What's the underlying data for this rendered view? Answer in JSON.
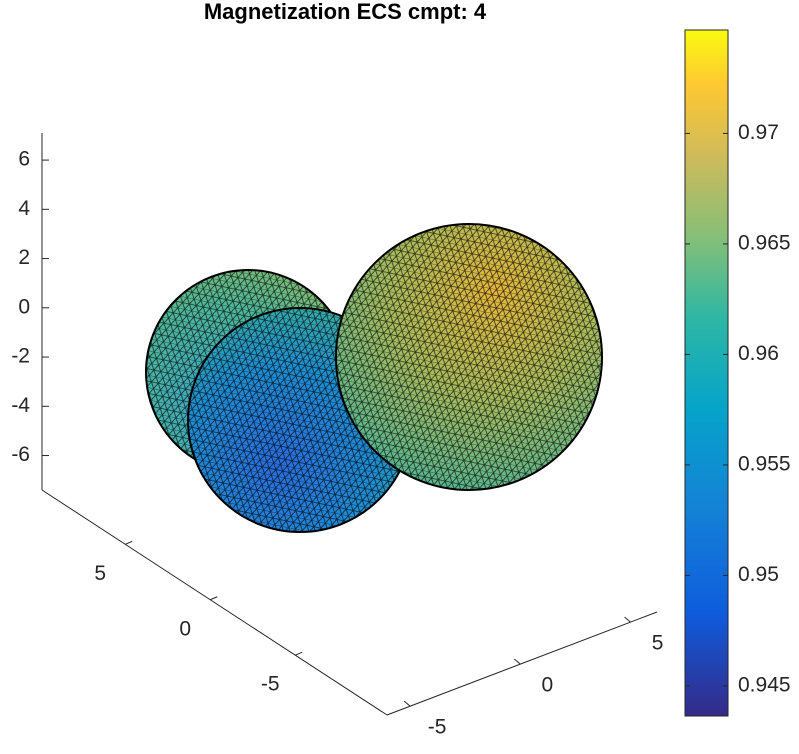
{
  "chart_data": {
    "type": "surface3d",
    "title": "Magnetization ECS cmpt: 4",
    "colormap": "parula",
    "xlim": [
      9.9,
      -10.4
    ],
    "xticks": [
      5,
      0,
      -5
    ],
    "ylim": [
      -6.05,
      6.2
    ],
    "yticks": [
      -5,
      0,
      5
    ],
    "zlim": [
      -7.4,
      7.1
    ],
    "zticks": [
      -6,
      -4,
      -2,
      0,
      2,
      4,
      6
    ],
    "clim": [
      0.94364,
      0.97468
    ],
    "cticks": [
      0.945,
      0.95,
      0.955,
      0.96,
      0.965,
      0.97
    ]
  }
}
